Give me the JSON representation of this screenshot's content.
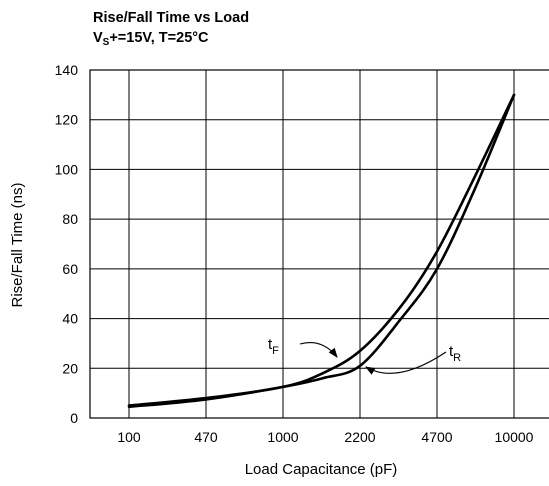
{
  "header": {
    "title": "Rise/Fall Time vs Load",
    "subtitle_prefix": "V",
    "subtitle_sub": "S",
    "subtitle_rest": "+=15V, T=25°C"
  },
  "chart_data": {
    "type": "line",
    "title": "Rise/Fall Time vs Load",
    "subtitle": "VS+=15V, T=25°C",
    "xlabel": "Load Capacitance (pF)",
    "ylabel": "Rise/Fall Time (ns)",
    "x_scale": "categorical",
    "categories": [
      "100",
      "470",
      "1000",
      "2200",
      "4700",
      "10000"
    ],
    "ylim": [
      0,
      140
    ],
    "yticks": [
      0,
      20,
      40,
      60,
      80,
      100,
      120,
      140
    ],
    "grid": true,
    "series": [
      {
        "name": "tF",
        "label_main": "t",
        "label_sub": "F",
        "x": [
          100,
          470,
          1000,
          1500,
          2200,
          3300,
          4700,
          6800,
          10000
        ],
        "y": [
          5,
          8,
          12.5,
          18,
          27,
          45,
          67,
          97,
          130
        ]
      },
      {
        "name": "tR",
        "label_main": "t",
        "label_sub": "R",
        "x": [
          100,
          470,
          1000,
          1500,
          2200,
          3300,
          4700,
          6800,
          10000
        ],
        "y": [
          4.5,
          7.5,
          12.5,
          16,
          21,
          40,
          60,
          92,
          130
        ]
      }
    ]
  }
}
